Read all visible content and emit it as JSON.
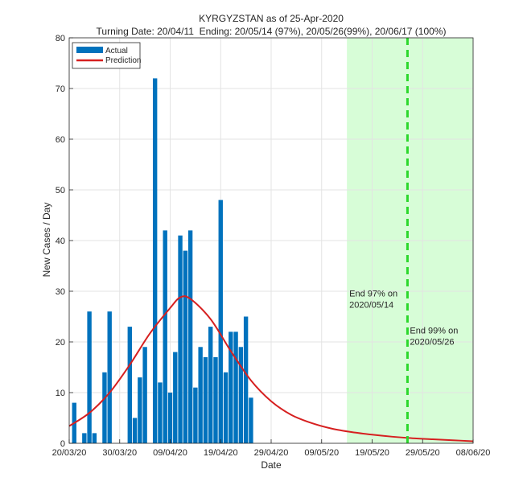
{
  "chart_data": {
    "type": "bar",
    "title": "KYRGYZSTAN as of 25-Apr-2020",
    "subtitle": "Turning Date: 20/04/11  Ending: 20/05/14 (97%), 20/05/26(99%), 20/06/17 (100%)",
    "xlabel": "Date",
    "ylabel": "New Cases / Day",
    "xlim": [
      "2020-03-20",
      "2020-06-08"
    ],
    "ylim": [
      0,
      80
    ],
    "yticks": [
      0,
      10,
      20,
      30,
      40,
      50,
      60,
      70,
      80
    ],
    "xticks": [
      {
        "date": "2020-03-20",
        "label": "20/03/20"
      },
      {
        "date": "2020-03-30",
        "label": "30/03/20"
      },
      {
        "date": "2020-04-09",
        "label": "09/04/20"
      },
      {
        "date": "2020-04-19",
        "label": "19/04/20"
      },
      {
        "date": "2020-04-29",
        "label": "29/04/20"
      },
      {
        "date": "2020-05-09",
        "label": "09/05/20"
      },
      {
        "date": "2020-05-19",
        "label": "19/05/20"
      },
      {
        "date": "2020-05-29",
        "label": "29/05/20"
      },
      {
        "date": "2020-06-08",
        "label": "08/06/20"
      }
    ],
    "grid": true,
    "legend_position": "top-left",
    "legend": {
      "actual": "Actual",
      "prediction": "Prediction"
    },
    "colors": {
      "actual": "#0072BD",
      "prediction": "#D62020",
      "shade": "#D7FDD7",
      "marker": "#2BD82B",
      "grid": "#E3E3E3"
    },
    "actual": {
      "dates": [
        "2020-03-21",
        "2020-03-23",
        "2020-03-24",
        "2020-03-25",
        "2020-03-27",
        "2020-03-28",
        "2020-04-01",
        "2020-04-02",
        "2020-04-03",
        "2020-04-04",
        "2020-04-06",
        "2020-04-07",
        "2020-04-08",
        "2020-04-09",
        "2020-04-10",
        "2020-04-11",
        "2020-04-12",
        "2020-04-13",
        "2020-04-14",
        "2020-04-15",
        "2020-04-16",
        "2020-04-17",
        "2020-04-18",
        "2020-04-19",
        "2020-04-20",
        "2020-04-21",
        "2020-04-22",
        "2020-04-23",
        "2020-04-24",
        "2020-04-25"
      ],
      "values": [
        8,
        2,
        26,
        2,
        14,
        26,
        23,
        5,
        13,
        19,
        72,
        12,
        42,
        10,
        18,
        41,
        38,
        42,
        11,
        19,
        17,
        23,
        17,
        48,
        14,
        22,
        22,
        19,
        25,
        9
      ]
    },
    "prediction": {
      "dates": [
        "2020-03-20",
        "2020-03-24",
        "2020-03-28",
        "2020-04-01",
        "2020-04-05",
        "2020-04-09",
        "2020-04-11",
        "2020-04-13",
        "2020-04-17",
        "2020-04-21",
        "2020-04-25",
        "2020-04-29",
        "2020-05-03",
        "2020-05-07",
        "2020-05-11",
        "2020-05-15",
        "2020-05-19",
        "2020-05-23",
        "2020-05-27",
        "2020-05-31",
        "2020-06-04",
        "2020-06-08"
      ],
      "values": [
        3.4,
        6.0,
        10.0,
        15.5,
        21.7,
        26.7,
        28.8,
        28.5,
        24.5,
        18.2,
        12.4,
        8.3,
        5.6,
        4.0,
        2.9,
        2.2,
        1.7,
        1.3,
        1.0,
        0.8,
        0.6,
        0.4
      ]
    },
    "shaded_region": {
      "start": "2020-05-14",
      "end": "2020-06-08"
    },
    "marker_line": {
      "date": "2020-05-26"
    },
    "annotations": [
      {
        "date": "2020-05-14",
        "y": 29,
        "text": [
          "End 97% on",
          "2020/05/14"
        ]
      },
      {
        "date": "2020-05-26",
        "y": 21.7,
        "text": [
          "End 99% on",
          "2020/05/26"
        ]
      }
    ]
  }
}
